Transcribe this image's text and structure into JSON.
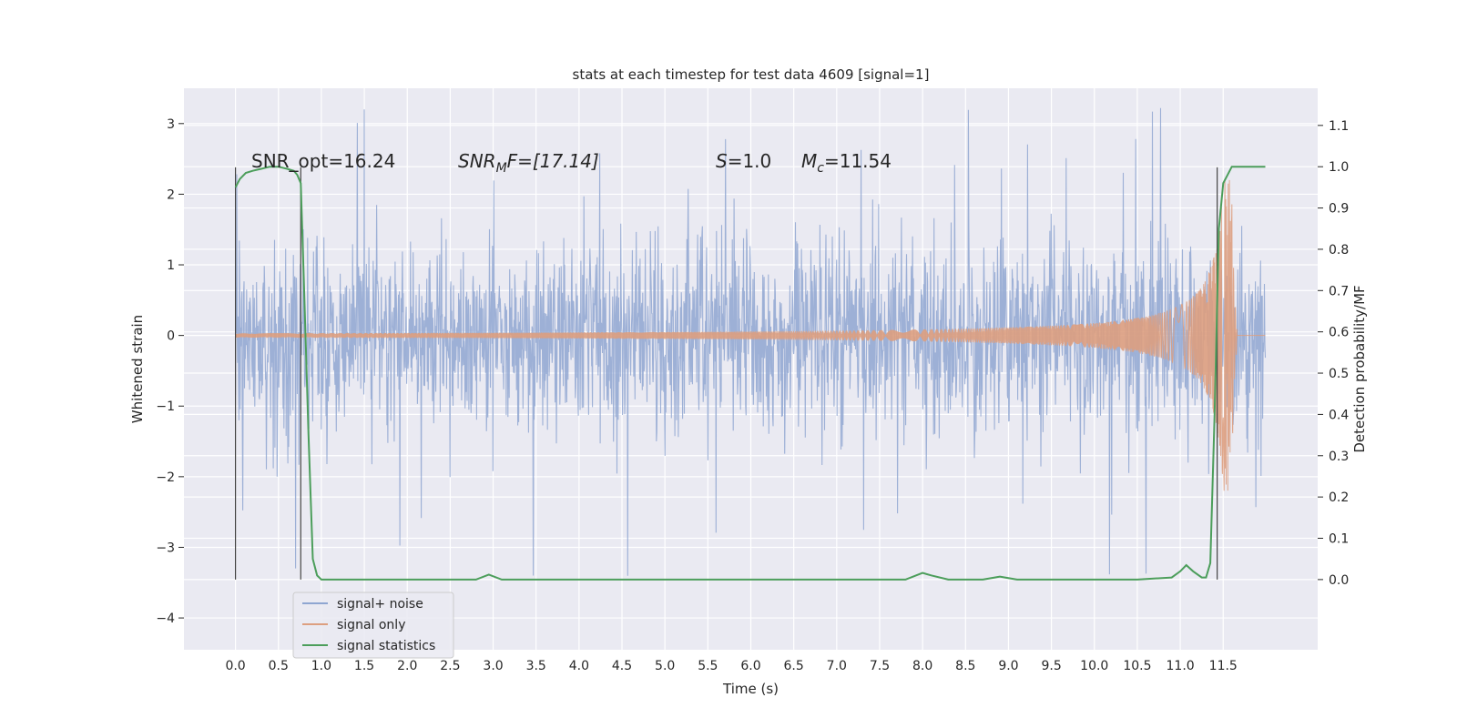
{
  "chart_data": {
    "type": "line",
    "title": "stats at each timestep for test data 4609 [signal=1]",
    "xlabel": "Time (s)",
    "ylabel_left": "Whitened strain",
    "ylabel_right": "Detection probability/MF",
    "xlim": [
      -0.6,
      12.6
    ],
    "ylim_left": [
      -4.45,
      3.5
    ],
    "ylim_right": [
      -0.17,
      1.19
    ],
    "x_ticks": [
      0.0,
      0.5,
      1.0,
      1.5,
      2.0,
      2.5,
      3.0,
      3.5,
      4.0,
      4.5,
      5.0,
      5.5,
      6.0,
      6.5,
      7.0,
      7.5,
      8.0,
      8.5,
      9.0,
      9.5,
      10.0,
      10.5,
      11.0,
      11.5
    ],
    "x_tick_labels": [
      "0.0",
      "0.5",
      "1.0",
      "1.5",
      "2.0",
      "2.5",
      "3.0",
      "3.5",
      "4.0",
      "4.5",
      "5.0",
      "5.5",
      "6.0",
      "6.5",
      "7.0",
      "7.5",
      "8.0",
      "8.5",
      "9.0",
      "9.5",
      "10.0",
      "10.5",
      "11.0",
      "11.5"
    ],
    "y_ticks_left": [
      3,
      2,
      1,
      0,
      -1,
      -2,
      -3,
      -4
    ],
    "y_tick_labels_left": [
      "3",
      "2",
      "1",
      "0",
      "−1",
      "−2",
      "−3",
      "−4"
    ],
    "y_ticks_right": [
      1.1,
      1.0,
      0.9,
      0.8,
      0.7,
      0.6,
      0.5,
      0.4,
      0.3,
      0.2,
      0.1,
      0.0
    ],
    "y_tick_labels_right": [
      "1.1",
      "1.0",
      "0.9",
      "0.8",
      "0.7",
      "0.6",
      "0.5",
      "0.4",
      "0.3",
      "0.2",
      "0.1",
      "0.0"
    ],
    "grid": true,
    "legend_position": "lower-left",
    "annotations": {
      "snr_opt": "SNR_opt=16.24",
      "snr_mf_sym": "SNR",
      "snr_mf_sub": "M",
      "snr_mf_rest": "F=[17.14]",
      "s_sym": "S",
      "s_rest": "=1.0",
      "mc_sym": "M",
      "mc_sub": "c",
      "mc_rest": "=11.54"
    },
    "series": [
      {
        "name": "signal+ noise",
        "color": "#8fa6d1",
        "axis": "left",
        "x_range": [
          0.0,
          11.99
        ],
        "typical_range": [
          -1.35,
          1.25
        ]
      },
      {
        "name": "signal only",
        "color": "#dd9f80",
        "axis": "left",
        "x_range": [
          0.0,
          11.99
        ],
        "chirp_peak_time": 11.6,
        "chirp_peak_amplitude": 2.2
      },
      {
        "name": "signal statistics",
        "color": "#4c9e5b",
        "axis": "right",
        "x": [
          0.0,
          0.05,
          0.12,
          0.2,
          0.3,
          0.4,
          0.5,
          0.6,
          0.68,
          0.72,
          0.76,
          0.8,
          0.85,
          0.9,
          0.95,
          1.0,
          1.2,
          2.0,
          2.8,
          2.95,
          3.1,
          3.5,
          5.0,
          6.0,
          7.0,
          7.8,
          8.0,
          8.1,
          8.3,
          8.7,
          8.9,
          9.1,
          9.5,
          10.5,
          10.9,
          11.0,
          11.07,
          11.15,
          11.25,
          11.3,
          11.35,
          11.4,
          11.45,
          11.5,
          11.55,
          11.6,
          11.7,
          11.8,
          11.99
        ],
        "y": [
          0.95,
          0.97,
          0.985,
          0.99,
          0.995,
          1.0,
          1.0,
          0.995,
          0.99,
          0.98,
          0.96,
          0.7,
          0.35,
          0.05,
          0.01,
          0.0,
          0.0,
          0.0,
          0.0,
          0.012,
          0.0,
          0.0,
          0.0,
          0.0,
          0.0,
          0.0,
          0.016,
          0.01,
          0.0,
          0.0,
          0.007,
          0.0,
          0.0,
          0.0,
          0.005,
          0.02,
          0.035,
          0.02,
          0.005,
          0.005,
          0.04,
          0.4,
          0.85,
          0.96,
          0.98,
          1.0,
          1.0,
          1.0,
          1.0
        ]
      }
    ],
    "vertical_markers": [
      0.0,
      0.76,
      11.43
    ]
  }
}
